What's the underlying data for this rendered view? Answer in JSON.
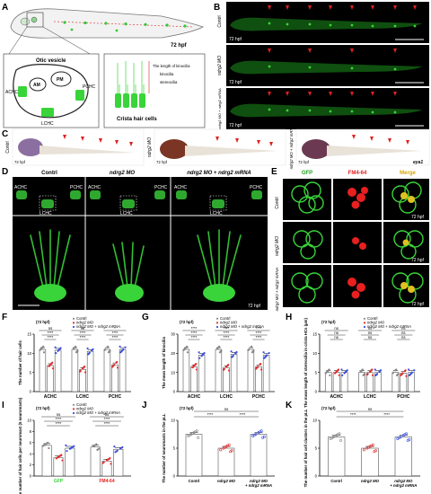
{
  "panels": {
    "A": "A",
    "B": "B",
    "C": "C",
    "D": "D",
    "E": "E",
    "F": "F",
    "G": "G",
    "H": "H",
    "I": "I",
    "J": "J",
    "K": "K"
  },
  "panelA": {
    "age": "72 hpf",
    "otic_vesicle": "Otic vesicle",
    "achc": "ACHC",
    "am": "AM",
    "pm": "PM",
    "pchc": "PCHC",
    "lchc": "LCHC",
    "crista_title": "Crista hair cells",
    "kino_length": "The length of kinocilia",
    "kinocilia": "kinocilia",
    "stereocilia": "stereocilia"
  },
  "panelB": {
    "rows": [
      "Contrl",
      "ndrg2 MO",
      "ndrg2 MO + ndrg2 mRNA"
    ],
    "age": "72 hpf"
  },
  "panelC": {
    "rows": [
      "Contrl",
      "ndrg2 MO",
      "ndrg2 MO + ndrg2 mRNA"
    ],
    "age": "72 hpf",
    "gene": "eya1"
  },
  "panelD": {
    "cols": [
      "Contrl",
      "ndrg2 MO",
      "ndrg2 MO + ndrg2 mRNA"
    ],
    "achc": "ACHC",
    "pchc": "PCHC",
    "lchc": "LCHC",
    "age": "72 hpf"
  },
  "panelE": {
    "cols": [
      "GFP",
      "FM4-64",
      "Merge"
    ],
    "rows": [
      "Contrl",
      "ndrg2 MO",
      "ndrg2 MO + ndrg2 mRNA"
    ],
    "age": "72 hpf"
  },
  "legend": {
    "age": "(72 hpf)",
    "contrl": "Contrl",
    "mo": "ndrg2 MO",
    "rescue": "ndrg2 MO + ndrg2 mRNA"
  },
  "colors": {
    "contrl": "#888888",
    "mo": "#e03030",
    "rescue": "#3c50e0",
    "green": "#39d439",
    "red": "#e82020"
  },
  "chart_data": [
    {
      "panel": "F",
      "type": "bar",
      "ylabel": "The number of hair cells",
      "ylim": [
        0,
        15
      ],
      "yticks": [
        0,
        5,
        10,
        15
      ],
      "categories": [
        "ACHC",
        "LCHC",
        "PCHC"
      ],
      "series": [
        {
          "name": "Contrl",
          "values": [
            11.0,
            11.0,
            11.0
          ]
        },
        {
          "name": "ndrg2 MO",
          "values": [
            6.8,
            5.8,
            7.0
          ]
        },
        {
          "name": "ndrg2 MO + ndrg2 mRNA",
          "values": [
            10.8,
            10.5,
            11.0
          ]
        }
      ],
      "annotations": [
        {
          "category": "ACHC",
          "labels": [
            "ns",
            "****",
            "****"
          ]
        },
        {
          "category": "LCHC",
          "labels": [
            "ns",
            "****",
            "****"
          ]
        },
        {
          "category": "PCHC",
          "labels": [
            "*",
            "****",
            "****"
          ]
        }
      ]
    },
    {
      "panel": "G",
      "type": "bar",
      "ylabel": "The mean length of kinocilia",
      "ylim": [
        0,
        30
      ],
      "yticks": [
        0,
        10,
        20,
        30
      ],
      "categories": [
        "ACHC",
        "LCHC",
        "PCHC"
      ],
      "series": [
        {
          "name": "Contrl",
          "values": [
            22.0,
            22.0,
            22.0
          ]
        },
        {
          "name": "ndrg2 MO",
          "values": [
            13.0,
            12.5,
            13.0
          ]
        },
        {
          "name": "ndrg2 MO + ndrg2 mRNA",
          "values": [
            19.0,
            19.5,
            19.0
          ]
        }
      ],
      "annotations": [
        {
          "category": "ACHC",
          "labels": [
            "****",
            "****",
            "****"
          ]
        },
        {
          "category": "LCHC",
          "labels": [
            "****",
            "****",
            "****"
          ]
        },
        {
          "category": "PCHC",
          "labels": [
            "****",
            "****",
            "****"
          ]
        }
      ]
    },
    {
      "panel": "H",
      "type": "bar",
      "ylabel": "The mean length of stereocilia in crista HCs (μm)",
      "ylim": [
        0,
        15
      ],
      "yticks": [
        0,
        5,
        10,
        15
      ],
      "categories": [
        "ACHC",
        "LCHC",
        "PCHC"
      ],
      "series": [
        {
          "name": "Contrl",
          "values": [
            5.0,
            5.0,
            5.0
          ]
        },
        {
          "name": "ndrg2 MO",
          "values": [
            5.0,
            5.0,
            4.8
          ]
        },
        {
          "name": "ndrg2 MO + ndrg2 mRNA",
          "values": [
            5.0,
            5.0,
            5.0
          ]
        }
      ],
      "annotations": [
        {
          "category": "ACHC",
          "labels": [
            "ns",
            "ns",
            "ns"
          ]
        },
        {
          "category": "LCHC",
          "labels": [
            "ns",
            "ns",
            "ns"
          ]
        },
        {
          "category": "PCHC",
          "labels": [
            "ns",
            "ns",
            "ns"
          ]
        }
      ]
    },
    {
      "panel": "I",
      "type": "bar",
      "ylabel": "The number of hair cells per neuromast (5 neuromasts)",
      "ylim": [
        0,
        10
      ],
      "yticks": [
        0,
        2,
        4,
        6,
        8,
        10
      ],
      "categories": [
        "GFP",
        "FM4-64"
      ],
      "series": [
        {
          "name": "Contrl",
          "values": [
            5.5,
            5.2
          ]
        },
        {
          "name": "ndrg2 MO",
          "values": [
            3.3,
            2.7
          ]
        },
        {
          "name": "ndrg2 MO + ndrg2 mRNA",
          "values": [
            5.0,
            4.8
          ]
        }
      ],
      "annotations": [
        {
          "category": "GFP",
          "labels": [
            "ns",
            "****",
            "****"
          ]
        },
        {
          "category": "FM4-64",
          "labels": [
            "ns",
            "****",
            "****"
          ]
        }
      ]
    },
    {
      "panel": "J",
      "type": "bar",
      "ylabel": "The number of neuromasts in the pLL",
      "ylim": [
        0,
        10
      ],
      "yticks": [
        0,
        5,
        10
      ],
      "categories": [
        "Contrl",
        "ndrg2 MO",
        "ndrg2 MO + ndrg2 mRNA"
      ],
      "values": [
        7.5,
        5.0,
        7.5
      ],
      "annotations": [
        "ns",
        "****",
        "****"
      ]
    },
    {
      "panel": "K",
      "type": "bar",
      "ylabel": "The number of hair cell clusters in the pLL",
      "ylim": [
        0,
        10
      ],
      "yticks": [
        0,
        5,
        10
      ],
      "categories": [
        "Contrl",
        "ndrg2 MO",
        "ndrg2 MO + ndrg2 mRNA"
      ],
      "values": [
        7.0,
        5.0,
        7.0
      ],
      "annotations": [
        "ns",
        "****",
        "****"
      ]
    }
  ]
}
